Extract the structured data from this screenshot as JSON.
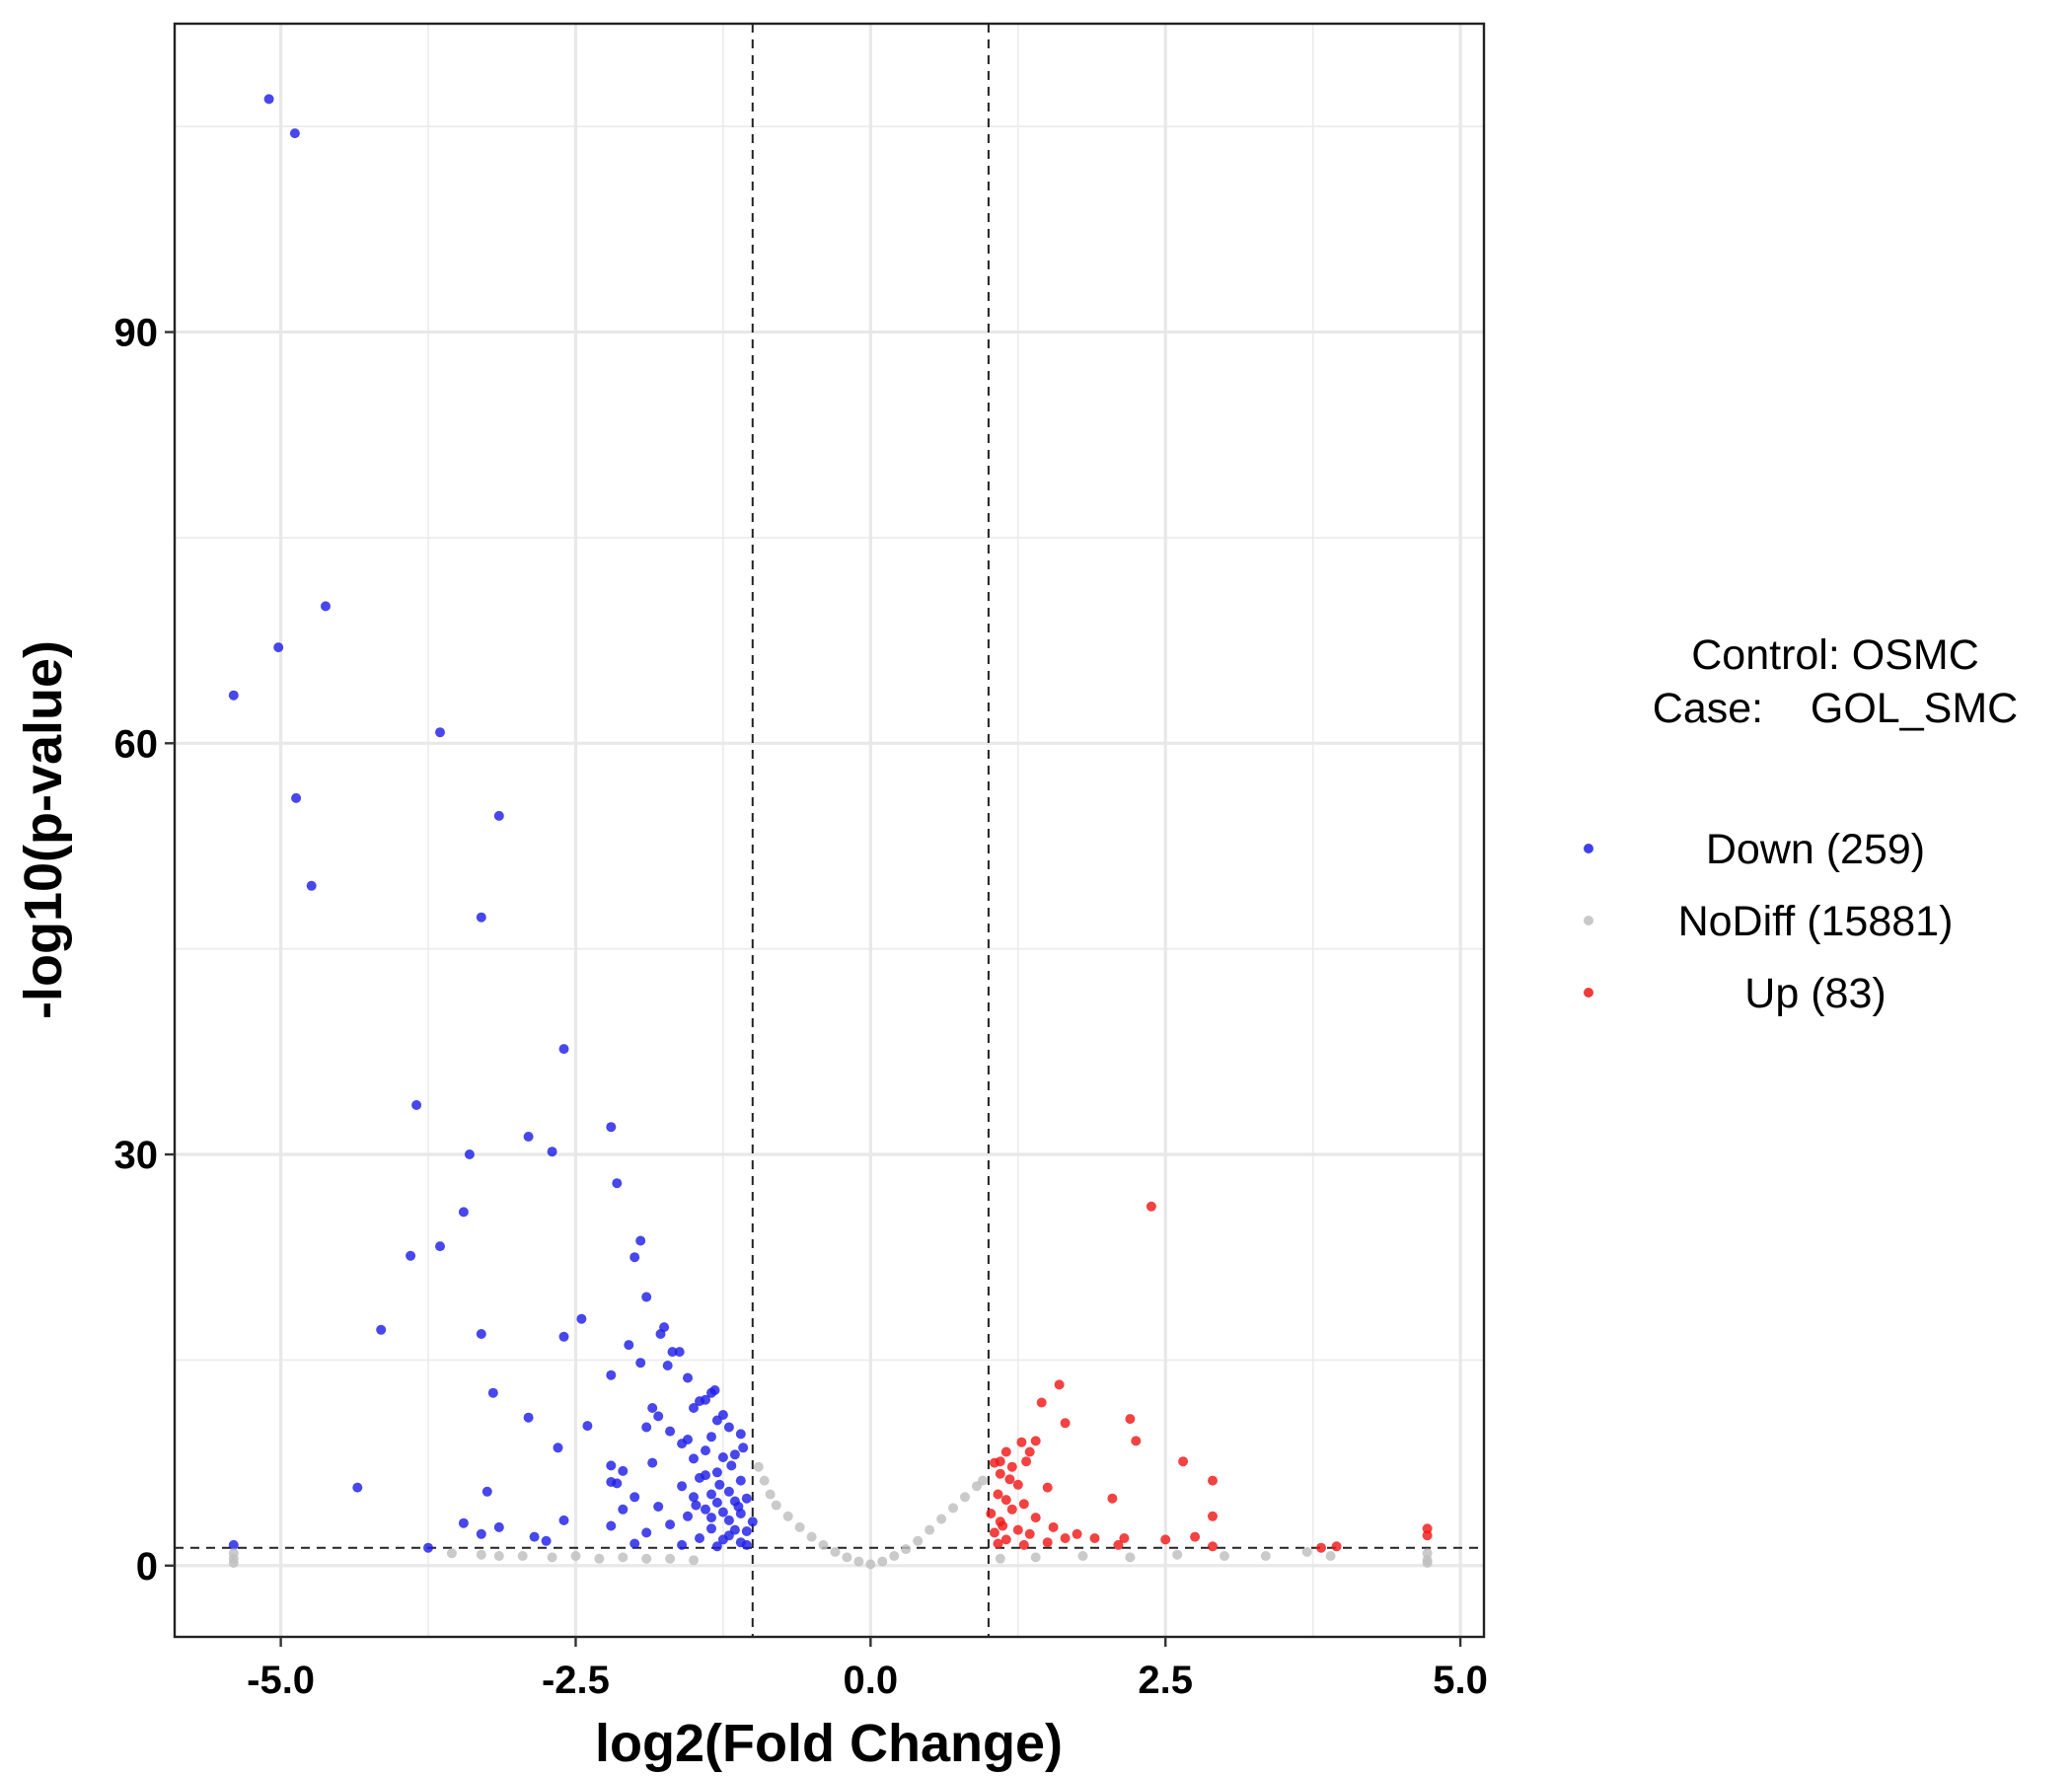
{
  "chart_data": {
    "type": "scatter",
    "title": "",
    "xlabel": "log2(Fold Change)",
    "ylabel": "-log10(p-value)",
    "xlim": [
      -5.9,
      5.2
    ],
    "ylim": [
      -5.2,
      112.5
    ],
    "x_ticks": [
      "-5.0",
      "-2.5",
      "0.0",
      "2.5",
      "5.0"
    ],
    "y_ticks": [
      "0",
      "30",
      "60",
      "90"
    ],
    "grid": true,
    "thresholds": {
      "log2fc": [
        -1,
        1
      ],
      "neg_log10_p": 1.3
    },
    "legend": {
      "position": "right",
      "title_line1": "Control: OSMC",
      "title_line2": "Case:    GOL_SMC",
      "entries": [
        {
          "label": "Down (259)",
          "color": "#1f1fe6"
        },
        {
          "label": "NoDiff (15881)",
          "color": "#bebebe"
        },
        {
          "label": "Up (83)",
          "color": "#f01818"
        }
      ]
    },
    "series": [
      {
        "name": "Down (259)",
        "color": "#1f1fe6",
        "points": [
          [
            -5.1,
            107
          ],
          [
            -4.88,
            104.5
          ],
          [
            -4.62,
            70
          ],
          [
            -5.02,
            67
          ],
          [
            -5.4,
            63.5
          ],
          [
            -3.65,
            60.8
          ],
          [
            -4.87,
            56
          ],
          [
            -3.15,
            54.7
          ],
          [
            -4.74,
            49.6
          ],
          [
            -3.3,
            47.3
          ],
          [
            -2.6,
            37.7
          ],
          [
            -3.85,
            33.6
          ],
          [
            -2.2,
            32
          ],
          [
            -2.9,
            31.3
          ],
          [
            -2.7,
            30.2
          ],
          [
            -3.4,
            30
          ],
          [
            -2.15,
            27.9
          ],
          [
            -3.45,
            25.8
          ],
          [
            -1.95,
            23.7
          ],
          [
            -3.65,
            23.3
          ],
          [
            -3.9,
            22.6
          ],
          [
            -2.0,
            22.5
          ],
          [
            -1.9,
            19.6
          ],
          [
            -2.45,
            18
          ],
          [
            -4.15,
            17.2
          ],
          [
            -3.3,
            16.9
          ],
          [
            -1.75,
            17.4
          ],
          [
            -2.6,
            16.7
          ],
          [
            -1.78,
            16.9
          ],
          [
            -2.05,
            16.1
          ],
          [
            -1.68,
            15.6
          ],
          [
            -1.62,
            15.6
          ],
          [
            -1.72,
            14.6
          ],
          [
            -1.55,
            13.7
          ],
          [
            -2.2,
            13.9
          ],
          [
            -1.95,
            14.8
          ],
          [
            -1.35,
            12.6
          ],
          [
            -1.32,
            12.8
          ],
          [
            -1.4,
            12.1
          ],
          [
            -3.2,
            12.6
          ],
          [
            -1.5,
            11.5
          ],
          [
            -1.45,
            12
          ],
          [
            -1.85,
            11.5
          ],
          [
            -1.8,
            10.9
          ],
          [
            -1.25,
            11
          ],
          [
            -1.3,
            10.6
          ],
          [
            -2.9,
            10.8
          ],
          [
            -1.2,
            10.1
          ],
          [
            -1.1,
            9.6
          ],
          [
            -2.4,
            10.2
          ],
          [
            -1.7,
            9.8
          ],
          [
            -1.9,
            10.1
          ],
          [
            -1.6,
            8.9
          ],
          [
            -1.55,
            9.2
          ],
          [
            -1.35,
            9.4
          ],
          [
            -1.4,
            8.4
          ],
          [
            -2.65,
            8.6
          ],
          [
            -1.15,
            8.1
          ],
          [
            -1.25,
            7.9
          ],
          [
            -1.85,
            7.5
          ],
          [
            -2.2,
            7.3
          ],
          [
            -2.1,
            6.9
          ],
          [
            -1.3,
            6.8
          ],
          [
            -1.45,
            6.4
          ],
          [
            -2.2,
            6.1
          ],
          [
            -2.15,
            6.0
          ],
          [
            -1.1,
            6.2
          ],
          [
            -1.6,
            5.8
          ],
          [
            -4.35,
            5.7
          ],
          [
            -3.25,
            5.4
          ],
          [
            -1.2,
            5.4
          ],
          [
            -1.35,
            5.2
          ],
          [
            -1.5,
            5.0
          ],
          [
            -2.0,
            5.0
          ],
          [
            -1.05,
            4.9
          ],
          [
            -1.15,
            4.7
          ],
          [
            -1.3,
            4.6
          ],
          [
            -1.8,
            4.3
          ],
          [
            -2.1,
            4.1
          ],
          [
            -1.4,
            4.1
          ],
          [
            -1.25,
            3.9
          ],
          [
            -1.1,
            3.8
          ],
          [
            -1.55,
            3.6
          ],
          [
            -2.6,
            3.3
          ],
          [
            -3.45,
            3.1
          ],
          [
            -1.2,
            3.3
          ],
          [
            -1.0,
            3.2
          ],
          [
            -1.7,
            3.0
          ],
          [
            -2.2,
            2.9
          ],
          [
            -3.15,
            2.8
          ],
          [
            -1.35,
            2.7
          ],
          [
            -1.15,
            2.6
          ],
          [
            -1.05,
            2.5
          ],
          [
            -1.9,
            2.4
          ],
          [
            -3.3,
            2.3
          ],
          [
            -2.85,
            2.1
          ],
          [
            -1.45,
            2.0
          ],
          [
            -2.75,
            1.8
          ],
          [
            -1.25,
            1.9
          ],
          [
            -1.1,
            1.7
          ],
          [
            -3.75,
            1.3
          ],
          [
            -2.0,
            1.6
          ],
          [
            -1.6,
            1.5
          ],
          [
            -5.4,
            1.5
          ],
          [
            -1.3,
            1.4
          ],
          [
            -1.05,
            1.5
          ],
          [
            -1.2,
            2.2
          ],
          [
            -1.35,
            3.5
          ],
          [
            -1.48,
            4.4
          ],
          [
            -1.12,
            4.3
          ],
          [
            -1.28,
            5.9
          ],
          [
            -1.4,
            6.6
          ],
          [
            -1.18,
            7.3
          ],
          [
            -1.5,
            7.8
          ],
          [
            -1.08,
            8.6
          ]
        ]
      },
      {
        "name": "Up (83)",
        "color": "#f01818",
        "points": [
          [
            2.38,
            26.2
          ],
          [
            1.6,
            13.2
          ],
          [
            1.45,
            11.9
          ],
          [
            2.2,
            10.7
          ],
          [
            1.65,
            10.4
          ],
          [
            2.25,
            9.1
          ],
          [
            1.28,
            9.0
          ],
          [
            1.4,
            9.1
          ],
          [
            1.35,
            8.3
          ],
          [
            1.15,
            8.3
          ],
          [
            1.1,
            7.6
          ],
          [
            1.05,
            7.5
          ],
          [
            1.2,
            7.2
          ],
          [
            1.32,
            7.6
          ],
          [
            2.65,
            7.6
          ],
          [
            1.1,
            6.7
          ],
          [
            1.18,
            6.3
          ],
          [
            1.25,
            5.9
          ],
          [
            2.9,
            6.2
          ],
          [
            1.5,
            5.7
          ],
          [
            1.08,
            5.2
          ],
          [
            1.15,
            4.8
          ],
          [
            2.05,
            4.9
          ],
          [
            1.3,
            4.5
          ],
          [
            1.2,
            4.1
          ],
          [
            1.02,
            3.8
          ],
          [
            1.4,
            3.5
          ],
          [
            2.9,
            3.6
          ],
          [
            1.1,
            3.2
          ],
          [
            1.12,
            2.9
          ],
          [
            1.55,
            2.8
          ],
          [
            1.25,
            2.6
          ],
          [
            1.05,
            2.4
          ],
          [
            1.35,
            2.3
          ],
          [
            1.75,
            2.3
          ],
          [
            2.15,
            2.0
          ],
          [
            2.75,
            2.1
          ],
          [
            1.65,
            2.0
          ],
          [
            1.9,
            2.0
          ],
          [
            2.5,
            1.9
          ],
          [
            1.15,
            1.9
          ],
          [
            1.5,
            1.7
          ],
          [
            2.1,
            1.5
          ],
          [
            2.9,
            1.4
          ],
          [
            3.82,
            1.3
          ],
          [
            3.95,
            1.4
          ],
          [
            4.72,
            2.7
          ],
          [
            4.72,
            2.2
          ],
          [
            1.3,
            1.5
          ],
          [
            1.08,
            1.6
          ]
        ]
      },
      {
        "name": "NoDiff (15881)",
        "color": "#bebebe",
        "points": [
          [
            -5.4,
            0.5
          ],
          [
            -5.4,
            0.9
          ],
          [
            -5.4,
            0.2
          ],
          [
            -3.55,
            0.9
          ],
          [
            -3.3,
            0.8
          ],
          [
            -3.15,
            0.7
          ],
          [
            -2.95,
            0.7
          ],
          [
            -2.7,
            0.6
          ],
          [
            -2.5,
            0.7
          ],
          [
            -2.3,
            0.5
          ],
          [
            -2.1,
            0.6
          ],
          [
            -1.9,
            0.5
          ],
          [
            -1.7,
            0.5
          ],
          [
            -1.5,
            0.4
          ],
          [
            -0.95,
            7.2
          ],
          [
            -0.9,
            6.2
          ],
          [
            -0.85,
            5.2
          ],
          [
            -0.8,
            4.4
          ],
          [
            -0.7,
            3.6
          ],
          [
            -0.6,
            2.8
          ],
          [
            -0.5,
            2.1
          ],
          [
            -0.4,
            1.5
          ],
          [
            -0.3,
            1.0
          ],
          [
            -0.2,
            0.6
          ],
          [
            -0.1,
            0.3
          ],
          [
            0.0,
            0.1
          ],
          [
            0.1,
            0.3
          ],
          [
            0.2,
            0.7
          ],
          [
            0.3,
            1.2
          ],
          [
            0.4,
            1.8
          ],
          [
            0.5,
            2.6
          ],
          [
            0.6,
            3.4
          ],
          [
            0.7,
            4.2
          ],
          [
            0.8,
            5.0
          ],
          [
            0.9,
            5.8
          ],
          [
            0.95,
            6.2
          ],
          [
            1.1,
            0.5
          ],
          [
            1.4,
            0.6
          ],
          [
            1.8,
            0.7
          ],
          [
            2.2,
            0.6
          ],
          [
            2.6,
            0.8
          ],
          [
            3.0,
            0.7
          ],
          [
            3.35,
            0.7
          ],
          [
            3.7,
            1.0
          ],
          [
            3.9,
            0.7
          ],
          [
            4.72,
            0.4
          ],
          [
            4.72,
            0.9
          ],
          [
            4.72,
            0.2
          ]
        ]
      }
    ]
  }
}
